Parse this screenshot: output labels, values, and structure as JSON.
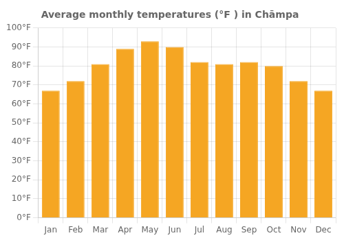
{
  "chart_data": {
    "type": "bar",
    "title": "Average monthly temperatures (°F ) in Chāmpa",
    "categories": [
      "Jan",
      "Feb",
      "Mar",
      "Apr",
      "May",
      "Jun",
      "Jul",
      "Aug",
      "Sep",
      "Oct",
      "Nov",
      "Dec"
    ],
    "values": [
      67,
      72,
      81,
      89,
      93,
      90,
      82,
      81,
      82,
      80,
      72,
      67
    ],
    "color": "#F5A623",
    "ylim": [
      0,
      100
    ],
    "yticks": [
      {
        "value": 0,
        "label": "0°F"
      },
      {
        "value": 10,
        "label": "10°F"
      },
      {
        "value": 20,
        "label": "20°F"
      },
      {
        "value": 30,
        "label": "30°F"
      },
      {
        "value": 40,
        "label": "40°F"
      },
      {
        "value": 50,
        "label": "50°F"
      },
      {
        "value": 60,
        "label": "60°F"
      },
      {
        "value": 70,
        "label": "70°F"
      },
      {
        "value": 80,
        "label": "80°F"
      },
      {
        "value": 90,
        "label": "90°F"
      },
      {
        "value": 100,
        "label": "100°F"
      }
    ],
    "grid": true
  }
}
